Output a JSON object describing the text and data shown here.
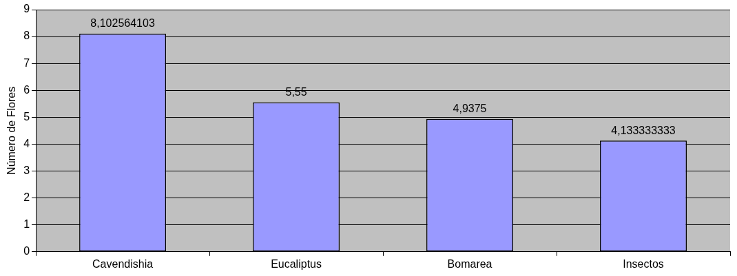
{
  "chart_data": {
    "type": "bar",
    "ylabel": "Número de Flores",
    "categories": [
      "Cavendishia",
      "Eucaliptus",
      "Bomarea",
      "Insectos"
    ],
    "values": [
      8.102564103,
      5.55,
      4.9375,
      4.133333333
    ],
    "value_labels": [
      "8,102564103",
      "5,55",
      "4,9375",
      "4,133333333"
    ],
    "color": "#9999ff",
    "ylim": [
      0,
      9
    ],
    "yticks": [
      0,
      1,
      2,
      3,
      4,
      5,
      6,
      7,
      8,
      9
    ],
    "grid": "y"
  }
}
